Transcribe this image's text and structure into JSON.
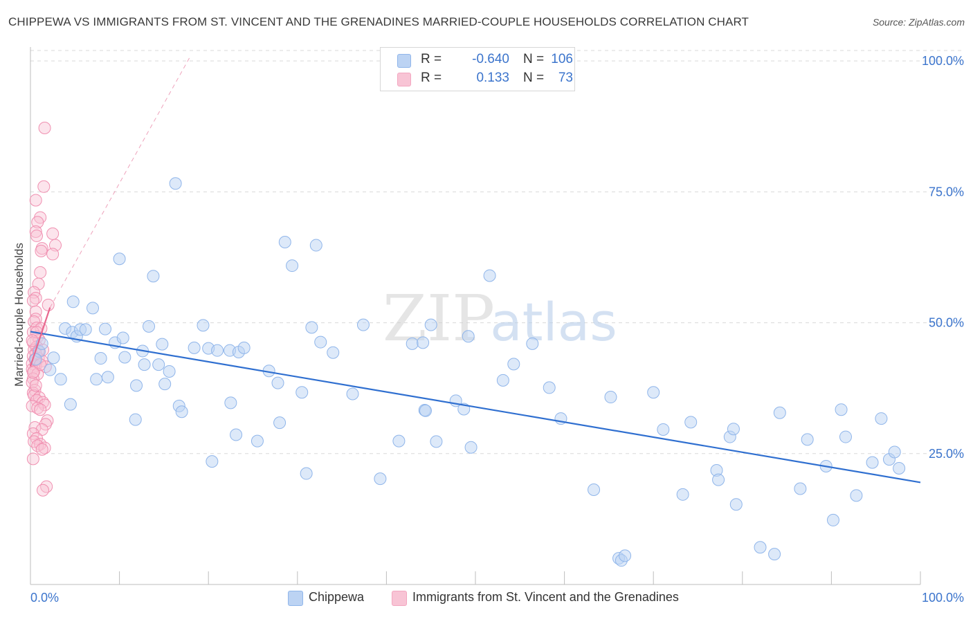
{
  "title": "CHIPPEWA VS IMMIGRANTS FROM ST. VINCENT AND THE GRENADINES MARRIED-COUPLE HOUSEHOLDS CORRELATION CHART",
  "source": "Source: ZipAtlas.com",
  "watermark": {
    "zip": "ZIP",
    "atlas": "atlas"
  },
  "legend": {
    "rows": [
      {
        "r_label": "R =",
        "r_value": "-0.640",
        "n_label": "N =",
        "n_value": "106"
      },
      {
        "r_label": "R =",
        "r_value": "0.133",
        "n_label": "N =",
        "n_value": "73"
      }
    ]
  },
  "chart_data": {
    "type": "scatter",
    "title": "CHIPPEWA VS IMMIGRANTS FROM ST. VINCENT AND THE GRENADINES MARRIED-COUPLE HOUSEHOLDS CORRELATION CHART",
    "ylabel": "Married-couple Households",
    "xlabel": "",
    "xlim": [
      0,
      100
    ],
    "ylim": [
      0,
      102
    ],
    "x_tick_labels": [
      "0.0%",
      "100.0%"
    ],
    "y_tick_labels": [
      "25.0%",
      "50.0%",
      "75.0%",
      "100.0%"
    ],
    "y_ticks": [
      25,
      50,
      75,
      100
    ],
    "grid": true,
    "legend_position": "bottom",
    "colors": {
      "Chippewa": "#8fb5ea",
      "Immigrants from St. Vincent and the Grenadines": "#f3a6c0",
      "blue_line": "#2f6fd0",
      "pink_line": "#e8678f"
    },
    "series": [
      {
        "name": "Chippewa",
        "r": -0.64,
        "n": 106,
        "trend": {
          "x": [
            0,
            100
          ],
          "y": [
            48.3,
            19.5
          ]
        },
        "points": [
          [
            1.0,
            44.5
          ],
          [
            1.3,
            46.0
          ],
          [
            2.2,
            41.0
          ],
          [
            2.6,
            43.3
          ],
          [
            3.4,
            39.2
          ],
          [
            3.9,
            48.9
          ],
          [
            4.5,
            34.4
          ],
          [
            4.7,
            48.2
          ],
          [
            4.8,
            54.0
          ],
          [
            5.2,
            47.4
          ],
          [
            5.6,
            48.7
          ],
          [
            6.2,
            48.7
          ],
          [
            7.0,
            52.8
          ],
          [
            7.4,
            39.2
          ],
          [
            7.9,
            43.2
          ],
          [
            8.4,
            48.8
          ],
          [
            8.7,
            39.6
          ],
          [
            9.5,
            46.2
          ],
          [
            10.0,
            62.2
          ],
          [
            10.4,
            47.1
          ],
          [
            10.6,
            43.4
          ],
          [
            11.8,
            31.5
          ],
          [
            11.9,
            38.0
          ],
          [
            12.6,
            44.6
          ],
          [
            12.8,
            42.0
          ],
          [
            13.3,
            49.3
          ],
          [
            13.8,
            58.9
          ],
          [
            14.4,
            42.0
          ],
          [
            14.8,
            45.9
          ],
          [
            15.1,
            38.3
          ],
          [
            15.6,
            40.7
          ],
          [
            16.3,
            76.6
          ],
          [
            16.7,
            34.1
          ],
          [
            17.0,
            33.0
          ],
          [
            18.4,
            45.2
          ],
          [
            19.4,
            49.5
          ],
          [
            20.0,
            45.1
          ],
          [
            20.4,
            23.5
          ],
          [
            21.0,
            44.7
          ],
          [
            22.4,
            44.7
          ],
          [
            22.5,
            34.7
          ],
          [
            23.1,
            28.6
          ],
          [
            23.4,
            44.4
          ],
          [
            24.0,
            45.2
          ],
          [
            25.5,
            27.4
          ],
          [
            26.8,
            40.8
          ],
          [
            27.8,
            38.5
          ],
          [
            28.0,
            30.9
          ],
          [
            28.6,
            65.4
          ],
          [
            29.4,
            60.9
          ],
          [
            30.5,
            36.7
          ],
          [
            31.0,
            21.2
          ],
          [
            31.6,
            49.1
          ],
          [
            32.1,
            64.8
          ],
          [
            32.6,
            46.3
          ],
          [
            34.0,
            44.3
          ],
          [
            36.2,
            36.4
          ],
          [
            37.4,
            49.6
          ],
          [
            39.3,
            20.2
          ],
          [
            41.4,
            27.4
          ],
          [
            42.9,
            46.0
          ],
          [
            44.1,
            46.2
          ],
          [
            44.3,
            33.3
          ],
          [
            44.4,
            33.2
          ],
          [
            45.0,
            49.6
          ],
          [
            45.6,
            27.3
          ],
          [
            47.8,
            35.1
          ],
          [
            48.7,
            33.5
          ],
          [
            49.2,
            47.4
          ],
          [
            49.5,
            26.2
          ],
          [
            51.6,
            59.0
          ],
          [
            53.1,
            39.0
          ],
          [
            54.3,
            42.1
          ],
          [
            56.4,
            46.0
          ],
          [
            58.3,
            37.6
          ],
          [
            59.6,
            31.7
          ],
          [
            63.3,
            18.1
          ],
          [
            65.2,
            35.8
          ],
          [
            66.1,
            5.0
          ],
          [
            66.4,
            4.6
          ],
          [
            66.8,
            5.5
          ],
          [
            70.0,
            36.7
          ],
          [
            71.1,
            29.6
          ],
          [
            73.3,
            17.2
          ],
          [
            74.2,
            31.0
          ],
          [
            77.1,
            21.8
          ],
          [
            77.3,
            20.0
          ],
          [
            78.6,
            28.2
          ],
          [
            79.0,
            29.7
          ],
          [
            79.3,
            15.3
          ],
          [
            82.0,
            7.1
          ],
          [
            83.6,
            5.8
          ],
          [
            84.2,
            32.8
          ],
          [
            86.5,
            18.3
          ],
          [
            87.3,
            27.7
          ],
          [
            89.4,
            22.6
          ],
          [
            90.2,
            12.3
          ],
          [
            91.1,
            33.4
          ],
          [
            91.6,
            28.2
          ],
          [
            92.8,
            17.0
          ],
          [
            94.6,
            23.3
          ],
          [
            95.6,
            31.7
          ],
          [
            96.5,
            23.9
          ],
          [
            97.1,
            25.3
          ],
          [
            97.6,
            22.2
          ],
          [
            0.6,
            43.0
          ]
        ]
      },
      {
        "name": "Immigrants from St. Vincent and the Grenadines",
        "r": 0.133,
        "n": 73,
        "trend": {
          "x": [
            0,
            2.2
          ],
          "y": [
            41.7,
            52.9
          ]
        },
        "trend_extension": {
          "x": [
            2.2,
            18.0
          ],
          "y": [
            52.9,
            101.0
          ]
        },
        "points": [
          [
            1.6,
            87.2
          ],
          [
            1.5,
            76.0
          ],
          [
            0.6,
            73.4
          ],
          [
            1.1,
            70.1
          ],
          [
            0.8,
            69.2
          ],
          [
            0.6,
            67.4
          ],
          [
            0.7,
            66.6
          ],
          [
            2.5,
            67.0
          ],
          [
            1.3,
            64.2
          ],
          [
            1.2,
            63.7
          ],
          [
            2.8,
            64.8
          ],
          [
            2.5,
            63.1
          ],
          [
            1.1,
            59.6
          ],
          [
            0.9,
            57.4
          ],
          [
            0.4,
            55.8
          ],
          [
            0.6,
            54.7
          ],
          [
            0.3,
            54.2
          ],
          [
            2.0,
            53.4
          ],
          [
            0.6,
            52.1
          ],
          [
            0.6,
            50.7
          ],
          [
            0.4,
            50.2
          ],
          [
            0.7,
            49.0
          ],
          [
            1.2,
            48.9
          ],
          [
            0.3,
            48.2
          ],
          [
            0.8,
            47.3
          ],
          [
            1.0,
            46.7
          ],
          [
            0.3,
            46.2
          ],
          [
            0.7,
            45.4
          ],
          [
            0.4,
            44.8
          ],
          [
            1.4,
            44.8
          ],
          [
            0.6,
            44.1
          ],
          [
            0.3,
            43.6
          ],
          [
            0.9,
            43.2
          ],
          [
            1.3,
            42.7
          ],
          [
            0.2,
            42.2
          ],
          [
            0.6,
            41.8
          ],
          [
            1.7,
            41.6
          ],
          [
            0.2,
            41.1
          ],
          [
            0.4,
            40.7
          ],
          [
            0.8,
            40.2
          ],
          [
            0.3,
            39.3
          ],
          [
            0.2,
            38.6
          ],
          [
            0.5,
            37.1
          ],
          [
            0.3,
            36.6
          ],
          [
            0.4,
            36.1
          ],
          [
            1.0,
            35.7
          ],
          [
            0.7,
            35.2
          ],
          [
            1.4,
            34.8
          ],
          [
            1.6,
            34.3
          ],
          [
            0.2,
            34.1
          ],
          [
            0.8,
            33.7
          ],
          [
            1.1,
            33.4
          ],
          [
            1.9,
            31.3
          ],
          [
            1.7,
            30.6
          ],
          [
            0.5,
            30.0
          ],
          [
            1.3,
            29.6
          ],
          [
            0.3,
            28.8
          ],
          [
            0.7,
            27.9
          ],
          [
            0.4,
            27.3
          ],
          [
            1.1,
            26.8
          ],
          [
            0.8,
            26.5
          ],
          [
            1.6,
            26.1
          ],
          [
            1.3,
            25.8
          ],
          [
            0.3,
            24.0
          ],
          [
            0.7,
            48.2
          ],
          [
            1.8,
            18.7
          ],
          [
            1.4,
            18.0
          ],
          [
            0.2,
            46.6
          ],
          [
            0.9,
            44.6
          ],
          [
            0.5,
            43.0
          ],
          [
            1.1,
            42.0
          ],
          [
            0.3,
            40.5
          ],
          [
            0.6,
            38.0
          ]
        ]
      }
    ]
  },
  "bottom_legend": [
    {
      "label": "Chippewa",
      "color": "#bcd3f3"
    },
    {
      "label": "Immigrants from St. Vincent and the Grenadines",
      "color": "#f8c4d5"
    }
  ]
}
